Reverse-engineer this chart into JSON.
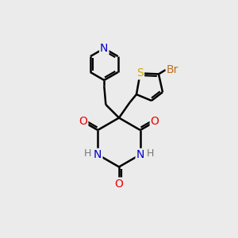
{
  "background_color": "#ebebeb",
  "atom_colors": {
    "C": "#000000",
    "N": "#0000cc",
    "O": "#ee0000",
    "S": "#ccaa00",
    "Br": "#c07020",
    "H": "#777777"
  },
  "bond_color": "#000000",
  "bond_width": 1.8,
  "font_size_atom": 10,
  "font_size_H": 9
}
